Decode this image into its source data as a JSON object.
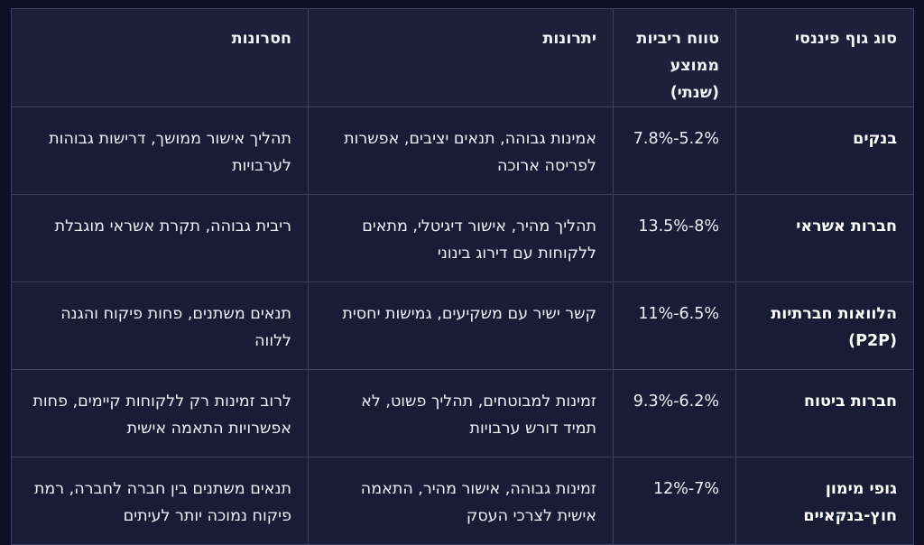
{
  "table": {
    "headers": [
      "סוג גוף פיננסי",
      "טווח ריביות ממוצע (שנתי)",
      "יתרונות",
      "חסרונות"
    ],
    "rows": [
      {
        "type": "בנקים",
        "rate": "7.8%-5.2%",
        "pros": "אמינות גבוהה, תנאים יציבים, אפשרות לפריסה ארוכה",
        "cons": "תהליך אישור ממושך, דרישות גבוהות לערבויות"
      },
      {
        "type": "חברות אשראי",
        "rate": "13.5%-8%",
        "pros": "תהליך מהיר, אישור דיגיטלי, מתאים ללקוחות עם דירוג בינוני",
        "cons": "ריבית גבוהה, תקרת אשראי מוגבלת"
      },
      {
        "type": "הלוואות חברתיות (P2P)",
        "rate": "11%-6.5%",
        "pros": "קשר ישיר עם משקיעים, גמישות יחסית",
        "cons": "תנאים משתנים, פחות פיקוח והגנה ללווה"
      },
      {
        "type": "חברות ביטוח",
        "rate": "9.3%-6.2%",
        "pros": "זמינות למבוטחים, תהליך פשוט, לא תמיד דורש ערבויות",
        "cons": "לרוב זמינות רק ללקוחות קיימים, פחות אפשרויות התאמה אישית"
      },
      {
        "type": "גופי מימון חוץ-בנקאיים",
        "rate": "12%-7%",
        "pros": "זמינות גבוהה, אישור מהיר, התאמה אישית לצרכי העסק",
        "cons": "תנאים משתנים בין חברה לחברה, רמת פיקוח נמוכה יותר לעיתים"
      }
    ]
  }
}
